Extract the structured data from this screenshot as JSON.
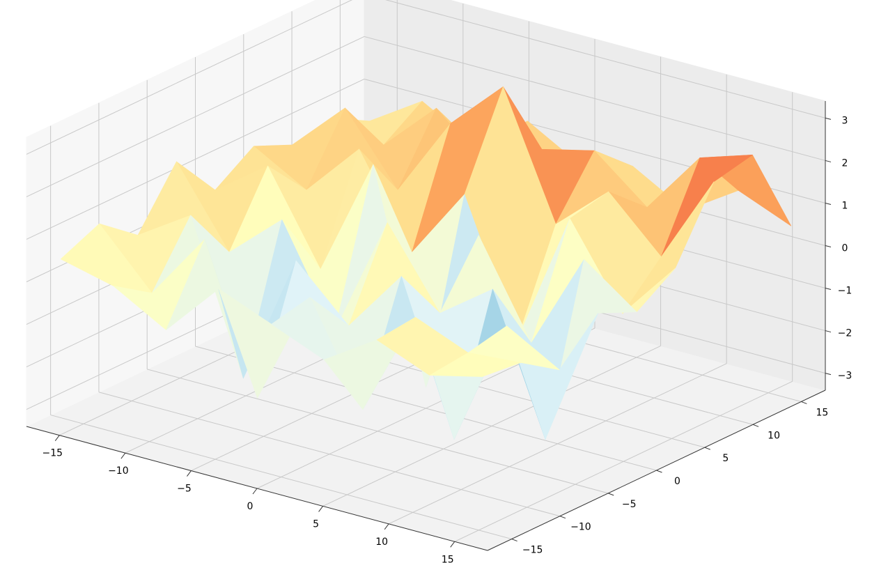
{
  "chart_data": {
    "type": "surface",
    "x": [
      -16,
      -12,
      -8,
      -4,
      0,
      4,
      8,
      12,
      16
    ],
    "y": [
      -16,
      -12,
      -8,
      -4,
      0,
      4,
      8,
      12,
      16
    ],
    "z": [
      [
        0.5,
        0.2,
        -0.5,
        0.8,
        0.3,
        -0.2,
        0.6,
        0.1,
        0.4
      ],
      [
        0.9,
        -0.4,
        1.2,
        -2.2,
        0.5,
        -1.8,
        0.7,
        0.2,
        0.3
      ],
      [
        0.2,
        1.0,
        -2.5,
        0.6,
        -0.6,
        0.9,
        -2.6,
        0.4,
        -0.3
      ],
      [
        1.5,
        -0.3,
        0.8,
        -1.5,
        1.4,
        -0.4,
        0.5,
        -2.7,
        0.6
      ],
      [
        0.4,
        1.3,
        -0.8,
        2.0,
        -2.9,
        1.0,
        -1.2,
        1.1,
        0.2
      ],
      [
        1.0,
        0.3,
        1.6,
        -0.5,
        1.2,
        -1.9,
        1.3,
        -0.6,
        0.8
      ],
      [
        0.6,
        1.8,
        0.2,
        2.1,
        3.3,
        0.4,
        1.5,
        0.3,
        2.4
      ],
      [
        0.8,
        0.5,
        1.7,
        0.6,
        1.4,
        1.7,
        0.7,
        2.2,
        2.6
      ],
      [
        0.3,
        1.1,
        0.4,
        1.3,
        0.6,
        0.9,
        0.2,
        1.0,
        0.5
      ]
    ],
    "colormap": [
      "#313695",
      "#4575b4",
      "#74add1",
      "#abd9e9",
      "#e0f3f8",
      "#ffffbf",
      "#fee090",
      "#fdae61",
      "#f46d43",
      "#d73027",
      "#a50026"
    ],
    "xlim": [
      -17.5,
      17.5
    ],
    "ylim": [
      -17.5,
      17.5
    ],
    "zlim": [
      -3.4,
      3.4
    ],
    "xticks": [
      {
        "value": -15,
        "label": "−15"
      },
      {
        "value": -10,
        "label": "−10"
      },
      {
        "value": -5,
        "label": "−5"
      },
      0,
      5,
      10,
      15
    ],
    "yticks": [
      {
        "value": -15,
        "label": "−15"
      },
      {
        "value": -10,
        "label": "−10"
      },
      {
        "value": -5,
        "label": "−5"
      },
      0,
      5,
      10,
      15
    ],
    "zticks": [
      {
        "value": -3,
        "label": "−3"
      },
      {
        "value": -2,
        "label": "−2"
      },
      {
        "value": -1,
        "label": "−1"
      },
      0,
      1,
      2,
      3
    ],
    "grid": true
  }
}
